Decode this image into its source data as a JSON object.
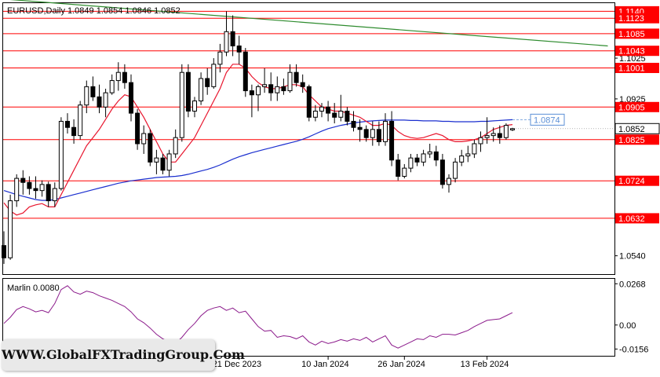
{
  "chart_data": [
    {
      "type": "candlestick",
      "title": "EURUSD,Daily  1.0849 1.0854 1.0846 1.0852",
      "ylim": [
        1.0495,
        1.116
      ],
      "y_ticks": [
        1.1025,
        1.0925,
        1.0725,
        1.054
      ],
      "x_tick_labels": [
        {
          "label": "21 Dec 2023",
          "index": 37
        },
        {
          "label": "10 Jan 2024",
          "index": 51
        },
        {
          "label": "26 Jan 2024",
          "index": 63
        },
        {
          "label": "13 Feb 2024",
          "index": 76
        }
      ],
      "horizontal_levels": [
        {
          "label": "1.1140",
          "value": 1.114
        },
        {
          "label": "1.1123",
          "value": 1.1123
        },
        {
          "label": "1.1085",
          "value": 1.1085
        },
        {
          "label": "1.1043",
          "value": 1.1043
        },
        {
          "label": "1.1001",
          "value": 1.1001
        },
        {
          "label": "1.0905",
          "value": 1.0905
        },
        {
          "label": "1.0825",
          "value": 1.0825
        },
        {
          "label": "1.0724",
          "value": 1.0724
        },
        {
          "label": "1.0632",
          "value": 1.0632
        }
      ],
      "current_price_label": "1.0852",
      "ma_value_label": "1.0874",
      "colors": {
        "bull": "#ffffff",
        "bear": "#000000",
        "levels": "#ff0000",
        "ma_fast": "#e8162e",
        "ma_slow": "#1b2fcf",
        "trendline": "#2e8b2e",
        "ma_callout": "#5b8fd6"
      },
      "trendline": [
        {
          "index": 0,
          "value": 1.117
        },
        {
          "index": 95,
          "value": 1.1055
        }
      ],
      "candles": [
        [
          1.0565,
          1.06,
          1.052,
          1.0535
        ],
        [
          1.0535,
          1.069,
          1.053,
          1.0675
        ],
        [
          1.0675,
          1.074,
          1.066,
          1.073
        ],
        [
          1.073,
          1.075,
          1.069,
          1.072
        ],
        [
          1.072,
          1.0735,
          1.069,
          1.0705
        ],
        [
          1.0705,
          1.0735,
          1.068,
          1.07
        ],
        [
          1.07,
          1.0725,
          1.0685,
          1.0715
        ],
        [
          1.0715,
          1.0722,
          1.066,
          1.0675
        ],
        [
          1.0675,
          1.072,
          1.066,
          1.0705
        ],
        [
          1.0705,
          1.088,
          1.07,
          1.087
        ],
        [
          1.087,
          1.089,
          1.084,
          1.0855
        ],
        [
          1.0855,
          1.0875,
          1.0815,
          1.0835
        ],
        [
          1.0835,
          1.092,
          1.0825,
          1.091
        ],
        [
          1.091,
          1.097,
          1.089,
          1.0955
        ],
        [
          1.0955,
          1.098,
          1.092,
          1.093
        ],
        [
          1.093,
          1.096,
          1.089,
          1.0905
        ],
        [
          1.0905,
          1.095,
          1.088,
          1.094
        ],
        [
          1.094,
          1.0985,
          1.0935,
          1.097
        ],
        [
          1.097,
          1.1015,
          1.0945,
          1.099
        ],
        [
          1.099,
          1.101,
          1.095,
          1.0965
        ],
        [
          1.0965,
          1.0985,
          1.087,
          1.089
        ],
        [
          1.089,
          1.09,
          1.08,
          1.0815
        ],
        [
          1.0815,
          1.086,
          1.079,
          1.084
        ],
        [
          1.084,
          1.085,
          1.076,
          1.077
        ],
        [
          1.077,
          1.08,
          1.074,
          1.078
        ],
        [
          1.078,
          1.079,
          1.074,
          1.075
        ],
        [
          1.075,
          1.08,
          1.0735,
          1.079
        ],
        [
          1.079,
          1.085,
          1.078,
          1.083
        ],
        [
          1.083,
          1.101,
          1.082,
          1.099
        ],
        [
          1.099,
          1.101,
          1.088,
          1.0895
        ],
        [
          1.0895,
          1.093,
          1.088,
          1.092
        ],
        [
          1.092,
          1.099,
          1.091,
          1.0975
        ],
        [
          1.0975,
          1.1,
          1.0935,
          1.0955
        ],
        [
          1.0955,
          1.1025,
          1.095,
          1.101
        ],
        [
          1.101,
          1.106,
          1.099,
          1.104
        ],
        [
          1.104,
          1.114,
          1.103,
          1.109
        ],
        [
          1.109,
          1.113,
          1.103,
          1.1055
        ],
        [
          1.1055,
          1.108,
          1.101,
          1.104
        ],
        [
          1.104,
          1.105,
          1.093,
          1.0945
        ],
        [
          1.0945,
          1.096,
          1.088,
          1.0935
        ],
        [
          1.0935,
          1.096,
          1.0895,
          1.0955
        ],
        [
          1.0955,
          1.1,
          1.094,
          1.096
        ],
        [
          1.096,
          1.099,
          1.092,
          1.094
        ],
        [
          1.094,
          1.098,
          1.092,
          1.0955
        ],
        [
          1.0955,
          1.0975,
          1.0935,
          1.0945
        ],
        [
          1.0945,
          1.101,
          1.094,
          1.099
        ],
        [
          1.099,
          1.101,
          1.0955,
          1.0965
        ],
        [
          1.0965,
          1.0985,
          1.094,
          1.0955
        ],
        [
          1.0955,
          1.096,
          1.087,
          1.088
        ],
        [
          1.088,
          1.091,
          1.087,
          1.0895
        ],
        [
          1.0895,
          1.0915,
          1.088,
          1.0905
        ],
        [
          1.0905,
          1.092,
          1.087,
          1.089
        ],
        [
          1.089,
          1.0915,
          1.0865,
          1.088
        ],
        [
          1.088,
          1.0935,
          1.087,
          1.0895
        ],
        [
          1.0895,
          1.0905,
          1.086,
          1.087
        ],
        [
          1.087,
          1.0895,
          1.0845,
          1.0855
        ],
        [
          1.0855,
          1.0875,
          1.082,
          1.085
        ],
        [
          1.085,
          1.086,
          1.082,
          1.083
        ],
        [
          1.083,
          1.087,
          1.081,
          1.085
        ],
        [
          1.085,
          1.087,
          1.081,
          1.082
        ],
        [
          1.082,
          1.089,
          1.081,
          1.087
        ],
        [
          1.087,
          1.0895,
          1.076,
          1.0775
        ],
        [
          1.0775,
          1.079,
          1.0725,
          1.0735
        ],
        [
          1.0735,
          1.0765,
          1.073,
          1.0755
        ],
        [
          1.0755,
          1.079,
          1.0745,
          1.078
        ],
        [
          1.078,
          1.079,
          1.076,
          1.077
        ],
        [
          1.077,
          1.08,
          1.076,
          1.079
        ],
        [
          1.079,
          1.0815,
          1.078,
          1.0795
        ],
        [
          1.0795,
          1.081,
          1.076,
          1.0775
        ],
        [
          1.0775,
          1.079,
          1.0705,
          1.0715
        ],
        [
          1.0715,
          1.074,
          1.0695,
          1.073
        ],
        [
          1.073,
          1.078,
          1.072,
          1.077
        ],
        [
          1.077,
          1.08,
          1.076,
          1.0785
        ],
        [
          1.0785,
          1.081,
          1.077,
          1.079
        ],
        [
          1.079,
          1.0825,
          1.078,
          1.0815
        ],
        [
          1.0815,
          1.0845,
          1.0795,
          1.083
        ],
        [
          1.083,
          1.088,
          1.0815,
          1.0835
        ],
        [
          1.0835,
          1.0855,
          1.082,
          1.084
        ],
        [
          1.084,
          1.086,
          1.0815,
          1.083
        ],
        [
          1.083,
          1.0865,
          1.0825,
          1.086
        ],
        [
          1.0849,
          1.0854,
          1.0846,
          1.0852
        ]
      ],
      "ma_fast": [
        1.067,
        1.065,
        1.064,
        1.0645,
        1.066,
        1.0665,
        1.0668,
        1.066,
        1.066,
        1.069,
        1.072,
        1.075,
        1.078,
        1.081,
        1.083,
        1.085,
        1.0875,
        1.09,
        1.092,
        1.0935,
        1.093,
        1.0905,
        1.088,
        1.085,
        1.082,
        1.079,
        1.077,
        1.077,
        1.079,
        1.081,
        1.083,
        1.086,
        1.089,
        1.092,
        1.095,
        1.099,
        1.101,
        1.101,
        1.1,
        1.098,
        1.0965,
        1.0955,
        1.095,
        1.095,
        1.0955,
        1.096,
        1.096,
        1.0955,
        1.0935,
        1.092,
        1.0905,
        1.09,
        1.0895,
        1.0895,
        1.089,
        1.0885,
        1.088,
        1.087,
        1.086,
        1.086,
        1.0865,
        1.086,
        1.0845,
        1.0835,
        1.083,
        1.0828,
        1.083,
        1.0835,
        1.084,
        1.0835,
        1.0825,
        1.082,
        1.082,
        1.0822,
        1.0825,
        1.083,
        1.084,
        1.085,
        1.0855,
        1.086,
        1.0862
      ],
      "ma_slow": [
        1.07,
        1.0695,
        1.069,
        1.0686,
        1.0682,
        1.0678,
        1.0676,
        1.0676,
        1.0678,
        1.0682,
        1.0686,
        1.069,
        1.0694,
        1.0698,
        1.0702,
        1.0706,
        1.071,
        1.0714,
        1.0718,
        1.0721,
        1.0724,
        1.0726,
        1.0728,
        1.073,
        1.0732,
        1.0733,
        1.0734,
        1.0735,
        1.0737,
        1.074,
        1.0744,
        1.0748,
        1.0752,
        1.0757,
        1.0763,
        1.077,
        1.0777,
        1.0783,
        1.0788,
        1.0793,
        1.0797,
        1.0801,
        1.0805,
        1.0809,
        1.0813,
        1.0817,
        1.0821,
        1.0826,
        1.0832,
        1.0839,
        1.0846,
        1.0852,
        1.0856,
        1.086,
        1.0863,
        1.0866,
        1.0868,
        1.087,
        1.0871,
        1.0872,
        1.0873,
        1.0873,
        1.0873,
        1.0873,
        1.0872,
        1.0872,
        1.0871,
        1.0871,
        1.0871,
        1.087,
        1.087,
        1.0869,
        1.0869,
        1.0869,
        1.0869,
        1.087,
        1.087,
        1.0871,
        1.0872,
        1.0873,
        1.0874
      ]
    },
    {
      "type": "line",
      "title": "Marlin 0.0080",
      "ylim": [
        -0.02,
        0.03
      ],
      "y_ticks": [
        0.0268,
        0.0,
        -0.0156
      ],
      "y_tick_labels": [
        "0.0268",
        "0.00",
        "-0.0156"
      ],
      "color": "#8b1a8b",
      "values": [
        0.001,
        0.005,
        0.01,
        0.012,
        0.0105,
        0.0085,
        0.0095,
        0.008,
        0.014,
        0.023,
        0.0255,
        0.0215,
        0.02,
        0.022,
        0.021,
        0.019,
        0.0175,
        0.016,
        0.014,
        0.012,
        0.0085,
        0.004,
        0.0015,
        -0.002,
        -0.006,
        -0.009,
        -0.011,
        -0.012,
        -0.008,
        -0.003,
        0.001,
        0.006,
        0.0095,
        0.011,
        0.012,
        0.0095,
        0.011,
        0.008,
        0.009,
        0.004,
        -0.001,
        -0.004,
        -0.0035,
        -0.008,
        -0.007,
        -0.0075,
        -0.009,
        -0.007,
        -0.011,
        -0.013,
        -0.0105,
        -0.012,
        -0.011,
        -0.0095,
        -0.0105,
        -0.009,
        -0.01,
        -0.008,
        -0.011,
        -0.009,
        -0.007,
        -0.013,
        -0.015,
        -0.013,
        -0.011,
        -0.009,
        -0.0095,
        -0.007,
        -0.008,
        -0.006,
        -0.006,
        -0.0065,
        -0.005,
        -0.0035,
        -0.001,
        0.001,
        0.003,
        0.0035,
        0.004,
        0.006,
        0.008
      ]
    }
  ],
  "watermark": "WWW.GlobalFXTradingGroup.Com"
}
